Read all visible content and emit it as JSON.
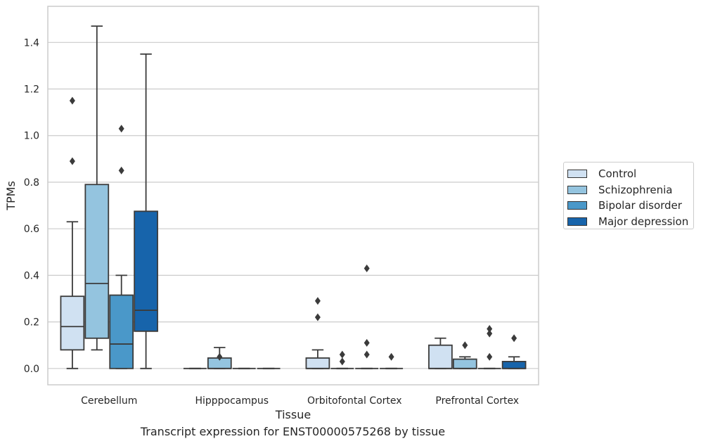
{
  "chart_data": {
    "type": "box",
    "xlabel": "Tissue",
    "ylabel": "TPMs",
    "ylim": [
      -0.07,
      1.555
    ],
    "yticks": [
      0.0,
      0.2,
      0.4,
      0.6,
      0.8,
      1.0,
      1.2,
      1.4
    ],
    "ytick_labels": [
      "0.0",
      "0.2",
      "0.4",
      "0.6",
      "0.8",
      "1.0",
      "1.2",
      "1.4"
    ],
    "grid": "horizontal",
    "legend": "right",
    "categories": [
      "Cerebellum",
      "Hipppocampus",
      "Orbitofontal Cortex",
      "Prefrontal Cortex"
    ],
    "series": [
      {
        "name": "Control",
        "color": "#d0e1f2",
        "boxes": [
          {
            "whisker_low": 0.0,
            "q1": 0.08,
            "median": 0.18,
            "q3": 0.31,
            "whisker_high": 0.63,
            "outliers": [
              0.89,
              1.15
            ]
          },
          {
            "whisker_low": 0.0,
            "q1": 0.0,
            "median": 0.0,
            "q3": 0.0,
            "whisker_high": 0.0,
            "outliers": []
          },
          {
            "whisker_low": 0.0,
            "q1": 0.0,
            "median": 0.0,
            "q3": 0.045,
            "whisker_high": 0.08,
            "outliers": [
              0.22,
              0.29
            ]
          },
          {
            "whisker_low": 0.0,
            "q1": 0.0,
            "median": 0.0,
            "q3": 0.1,
            "whisker_high": 0.13,
            "outliers": []
          }
        ]
      },
      {
        "name": "Schizophrenia",
        "color": "#94c4df",
        "boxes": [
          {
            "whisker_low": 0.08,
            "q1": 0.13,
            "median": 0.365,
            "q3": 0.79,
            "whisker_high": 1.47,
            "outliers": []
          },
          {
            "whisker_low": 0.0,
            "q1": 0.0,
            "median": 0.0,
            "q3": 0.045,
            "whisker_high": 0.09,
            "outliers": [
              0.05
            ]
          },
          {
            "whisker_low": 0.0,
            "q1": 0.0,
            "median": 0.0,
            "q3": 0.0,
            "whisker_high": 0.0,
            "outliers": [
              0.03,
              0.06
            ]
          },
          {
            "whisker_low": 0.0,
            "q1": 0.0,
            "median": 0.0,
            "q3": 0.04,
            "whisker_high": 0.05,
            "outliers": [
              0.1
            ]
          }
        ]
      },
      {
        "name": "Bipolar disorder",
        "color": "#4a98c9",
        "boxes": [
          {
            "whisker_low": 0.0,
            "q1": 0.0,
            "median": 0.105,
            "q3": 0.315,
            "whisker_high": 0.4,
            "outliers": [
              0.85,
              1.03
            ]
          },
          {
            "whisker_low": 0.0,
            "q1": 0.0,
            "median": 0.0,
            "q3": 0.0,
            "whisker_high": 0.0,
            "outliers": []
          },
          {
            "whisker_low": 0.0,
            "q1": 0.0,
            "median": 0.0,
            "q3": 0.0,
            "whisker_high": 0.0,
            "outliers": [
              0.06,
              0.11,
              0.43
            ]
          },
          {
            "whisker_low": 0.0,
            "q1": 0.0,
            "median": 0.0,
            "q3": 0.0,
            "whisker_high": 0.0,
            "outliers": [
              0.05,
              0.15,
              0.17
            ]
          }
        ]
      },
      {
        "name": "Major depression",
        "color": "#1764ab",
        "boxes": [
          {
            "whisker_low": 0.0,
            "q1": 0.16,
            "median": 0.25,
            "q3": 0.675,
            "whisker_high": 1.35,
            "outliers": []
          },
          {
            "whisker_low": 0.0,
            "q1": 0.0,
            "median": 0.0,
            "q3": 0.0,
            "whisker_high": 0.0,
            "outliers": []
          },
          {
            "whisker_low": 0.0,
            "q1": 0.0,
            "median": 0.0,
            "q3": 0.0,
            "whisker_high": 0.0,
            "outliers": [
              0.05
            ]
          },
          {
            "whisker_low": 0.0,
            "q1": 0.0,
            "median": 0.0,
            "q3": 0.03,
            "whisker_high": 0.05,
            "outliers": [
              0.13
            ]
          }
        ]
      }
    ]
  },
  "caption": "Transcript expression for ENST00000575268 by tissue"
}
